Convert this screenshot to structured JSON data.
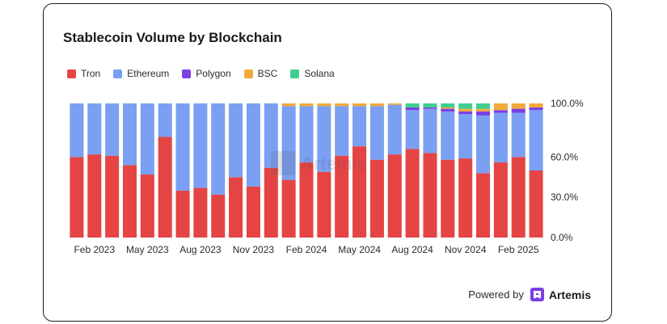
{
  "title": "Stablecoin Volume by Blockchain",
  "watermark": "Artemis",
  "powered_by": {
    "text": "Powered by",
    "brand": "Artemis",
    "brand_color": "#7b3fe4"
  },
  "colors": {
    "Tron": "#e54444",
    "Ethereum": "#7b9ff2",
    "Polygon": "#7b3fe4",
    "BSC": "#f2a93b",
    "Solana": "#3ecf8e"
  },
  "chart_data": {
    "type": "bar",
    "stacked": true,
    "normalized": true,
    "title": "Stablecoin Volume by Blockchain",
    "legend_position": "top-left",
    "y_axis_position": "right",
    "ylim": [
      0,
      100
    ],
    "yticks": [
      "0.0%",
      "30.0%",
      "60.0%",
      "100.0%"
    ],
    "ytick_values": [
      0,
      30,
      60,
      100
    ],
    "xtick_labels": [
      {
        "index": 1,
        "label": "Feb 2023"
      },
      {
        "index": 4,
        "label": "May 2023"
      },
      {
        "index": 7,
        "label": "Aug 2023"
      },
      {
        "index": 10,
        "label": "Nov 2023"
      },
      {
        "index": 13,
        "label": "Feb 2024"
      },
      {
        "index": 16,
        "label": "May 2024"
      },
      {
        "index": 19,
        "label": "Aug 2024"
      },
      {
        "index": 22,
        "label": "Nov 2024"
      },
      {
        "index": 25,
        "label": "Feb 2025"
      }
    ],
    "categories": [
      "Jan 2023",
      "Feb 2023",
      "Mar 2023",
      "Apr 2023",
      "May 2023",
      "Jun 2023",
      "Jul 2023",
      "Aug 2023",
      "Sep 2023",
      "Oct 2023",
      "Nov 2023",
      "Dec 2023",
      "Jan 2024",
      "Feb 2024",
      "Mar 2024",
      "Apr 2024",
      "May 2024",
      "Jun 2024",
      "Jul 2024",
      "Aug 2024",
      "Sep 2024",
      "Oct 2024",
      "Nov 2024",
      "Dec 2024",
      "Jan 2025",
      "Feb 2025",
      "Mar 2025"
    ],
    "series": [
      {
        "name": "Tron",
        "values": [
          60,
          62,
          61,
          54,
          47,
          75,
          35,
          37,
          32,
          45,
          38,
          52,
          43,
          56,
          49,
          61,
          68,
          58,
          62,
          66,
          63,
          58,
          59,
          48,
          56,
          60,
          50
        ]
      },
      {
        "name": "Ethereum",
        "values": [
          40,
          38,
          39,
          46,
          53,
          25,
          65,
          63,
          68,
          55,
          62,
          48,
          55,
          42,
          49,
          37,
          30,
          40,
          37,
          29,
          33,
          36,
          33,
          43,
          37,
          33,
          45
        ]
      },
      {
        "name": "Polygon",
        "values": [
          0,
          0,
          0,
          0,
          0,
          0,
          0,
          0,
          0,
          0,
          0,
          0,
          0,
          0,
          0,
          0,
          0,
          0,
          0,
          2,
          1,
          2,
          2,
          3,
          2,
          3,
          2
        ]
      },
      {
        "name": "BSC",
        "values": [
          0,
          0,
          0,
          0,
          0,
          0,
          0,
          0,
          0,
          0,
          0,
          0,
          2,
          2,
          2,
          2,
          2,
          2,
          1,
          0,
          0,
          1,
          2,
          2,
          5,
          4,
          3
        ]
      },
      {
        "name": "Solana",
        "values": [
          0,
          0,
          0,
          0,
          0,
          0,
          0,
          0,
          0,
          0,
          0,
          0,
          0,
          0,
          0,
          0,
          0,
          0,
          0,
          3,
          3,
          3,
          4,
          4,
          0,
          0,
          0
        ]
      }
    ]
  }
}
